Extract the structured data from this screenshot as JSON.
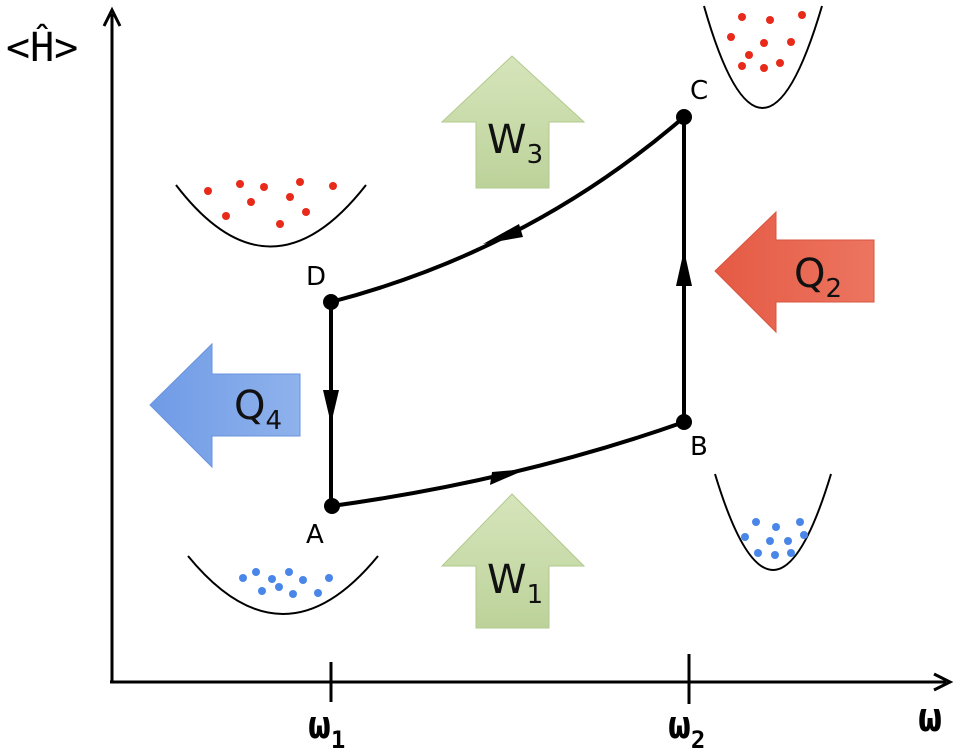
{
  "axes": {
    "y_label": "<Ĥ>",
    "x_label": "ω",
    "x_ticks": [
      {
        "base": "ω",
        "sub": "1"
      },
      {
        "base": "ω",
        "sub": "2"
      }
    ]
  },
  "points": {
    "A": "A",
    "B": "B",
    "C": "C",
    "D": "D"
  },
  "arrows": {
    "w1": {
      "base": "W",
      "sub": "1",
      "color": "#c5d9a4"
    },
    "w3": {
      "base": "W",
      "sub": "3",
      "color": "#c5d9a4"
    },
    "q2": {
      "base": "Q",
      "sub": "2",
      "color": "#e8604c"
    },
    "q4": {
      "base": "Q",
      "sub": "4",
      "color": "#7ea6e8"
    }
  },
  "colors": {
    "hot_particles": "#e82a1a",
    "cold_particles": "#4a86e8",
    "cycle_line": "#000000"
  }
}
